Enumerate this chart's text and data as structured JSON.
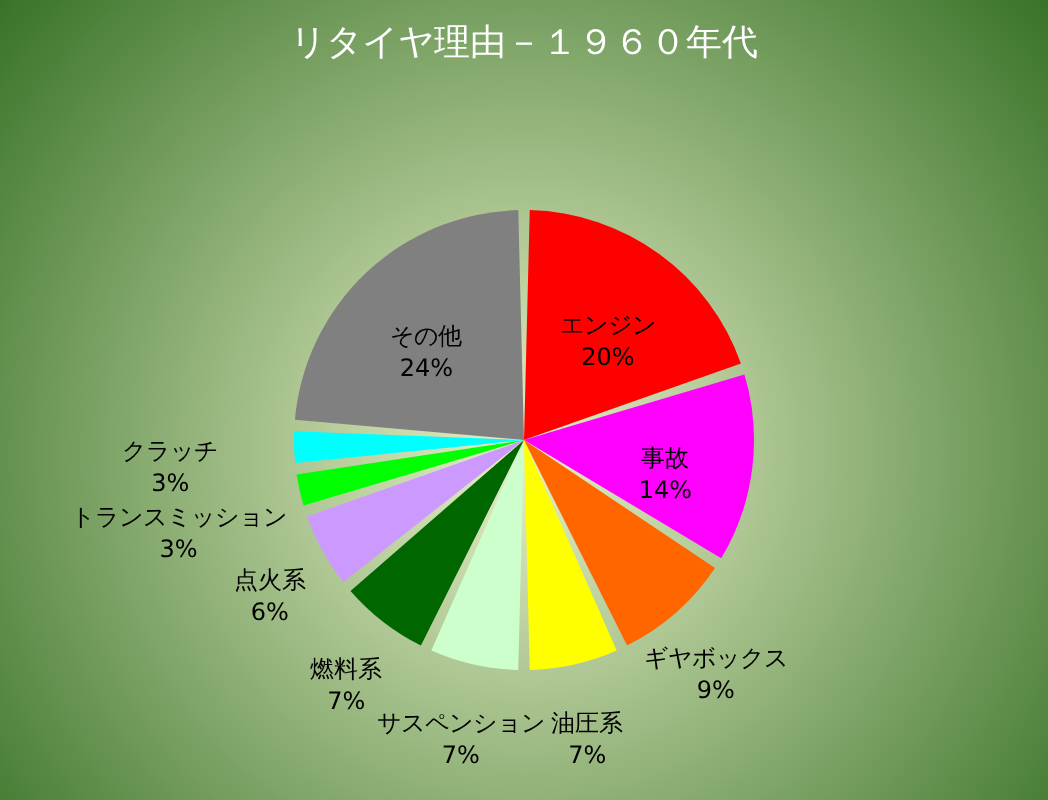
{
  "chart_data": {
    "type": "pie",
    "title": "リタイヤ理由－１９６０年代",
    "categories": [
      "エンジン",
      "事故",
      "ギヤボックス",
      "油圧系",
      "サスペンション",
      "燃料系",
      "点火系",
      "トランスミッション",
      "クラッチ",
      "その他"
    ],
    "values": [
      20,
      14,
      9,
      7,
      7,
      7,
      6,
      3,
      3,
      24
    ],
    "value_labels": [
      "20%",
      "14%",
      "9%",
      "7%",
      "7%",
      "7%",
      "6%",
      "3%",
      "3%",
      "24%"
    ],
    "colors": [
      "#ff0000",
      "#ff00ff",
      "#ff6600",
      "#ffff00",
      "#ccffcc",
      "#006600",
      "#cc99ff",
      "#00ff00",
      "#00ffff",
      "#808080"
    ],
    "legend": false
  }
}
